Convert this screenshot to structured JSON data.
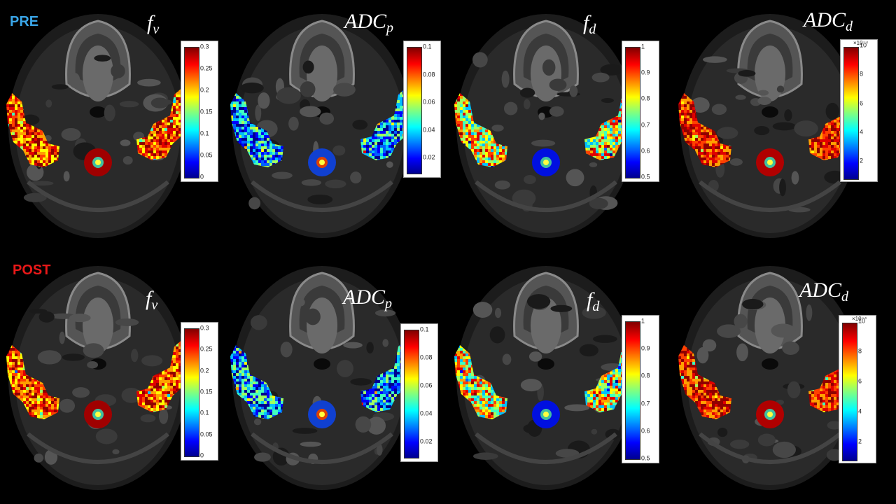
{
  "rows": [
    {
      "label": "PRE",
      "label_color": "#3aa6e8",
      "panels": [
        {
          "param_base": "f",
          "param_sub": "v",
          "colorbar": {
            "ticks": [
              "0.3",
              "0.25",
              "0.2",
              "0.15",
              "0.1",
              "0.05",
              "0"
            ],
            "exponent": ""
          }
        },
        {
          "param_base": "ADC",
          "param_sub": "p",
          "colorbar": {
            "ticks": [
              "0.1",
              "0.08",
              "0.06",
              "0.04",
              "0.02"
            ],
            "exponent": ""
          }
        },
        {
          "param_base": "f",
          "param_sub": "d",
          "colorbar": {
            "ticks": [
              "1",
              "0.9",
              "0.8",
              "0.7",
              "0.6",
              "0.5"
            ],
            "exponent": ""
          }
        },
        {
          "param_base": "ADC",
          "param_sub": "d",
          "colorbar": {
            "ticks": [
              "10",
              "8",
              "6",
              "4",
              "2"
            ],
            "exponent": "×10⁻⁴"
          }
        }
      ]
    },
    {
      "label": "POST",
      "label_color": "#e81818",
      "panels": [
        {
          "param_base": "f",
          "param_sub": "v",
          "colorbar": {
            "ticks": [
              "0.3",
              "0.25",
              "0.2",
              "0.15",
              "0.1",
              "0.05",
              "0"
            ],
            "exponent": ""
          }
        },
        {
          "param_base": "ADC",
          "param_sub": "p",
          "colorbar": {
            "ticks": [
              "0.1",
              "0.08",
              "0.06",
              "0.04",
              "0.02"
            ],
            "exponent": ""
          }
        },
        {
          "param_base": "f",
          "param_sub": "d",
          "colorbar": {
            "ticks": [
              "1",
              "0.9",
              "0.8",
              "0.7",
              "0.6",
              "0.5"
            ],
            "exponent": ""
          }
        },
        {
          "param_base": "ADC",
          "param_sub": "d",
          "colorbar": {
            "ticks": [
              "10",
              "8",
              "6",
              "4",
              "2"
            ],
            "exponent": "×10⁻⁴"
          }
        }
      ]
    }
  ]
}
